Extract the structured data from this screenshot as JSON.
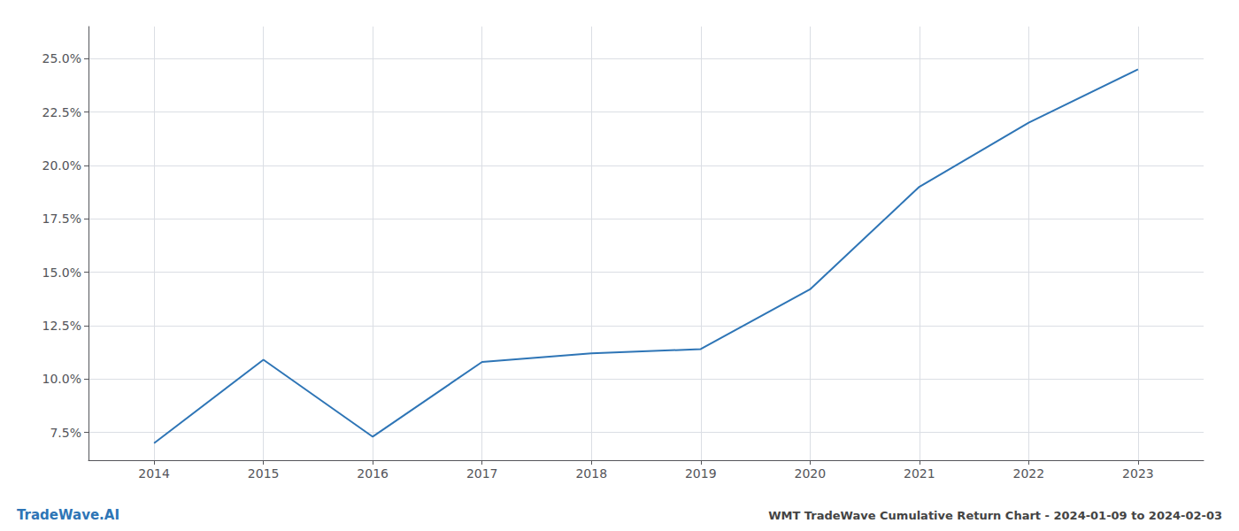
{
  "chart_data": {
    "type": "line",
    "title": "WMT TradeWave Cumulative Return Chart - 2024-01-09 to 2024-02-03",
    "annotations": [
      "TradeWave.AI"
    ],
    "x": [
      2014,
      2015,
      2016,
      2017,
      2018,
      2019,
      2020,
      2021,
      2022,
      2023
    ],
    "values": [
      7.0,
      10.9,
      7.3,
      10.8,
      11.2,
      11.4,
      14.2,
      19.0,
      22.0,
      24.5
    ],
    "color": "#2e75b6",
    "xlim": [
      2013.4,
      2023.6
    ],
    "xticks": [
      2014,
      2015,
      2016,
      2017,
      2018,
      2019,
      2020,
      2021,
      2022,
      2023
    ],
    "ylim": [
      6.2,
      26.5
    ],
    "yticks": [
      {
        "value": 7.5,
        "label": "7.5%"
      },
      {
        "value": 10.0,
        "label": "10.0%"
      },
      {
        "value": 12.5,
        "label": "12.5%"
      },
      {
        "value": 15.0,
        "label": "15.0%"
      },
      {
        "value": 17.5,
        "label": "17.5%"
      },
      {
        "value": 20.0,
        "label": "20.0%"
      },
      {
        "value": 22.5,
        "label": "22.5%"
      },
      {
        "value": 25.0,
        "label": "25.0%"
      }
    ],
    "grid": true
  }
}
